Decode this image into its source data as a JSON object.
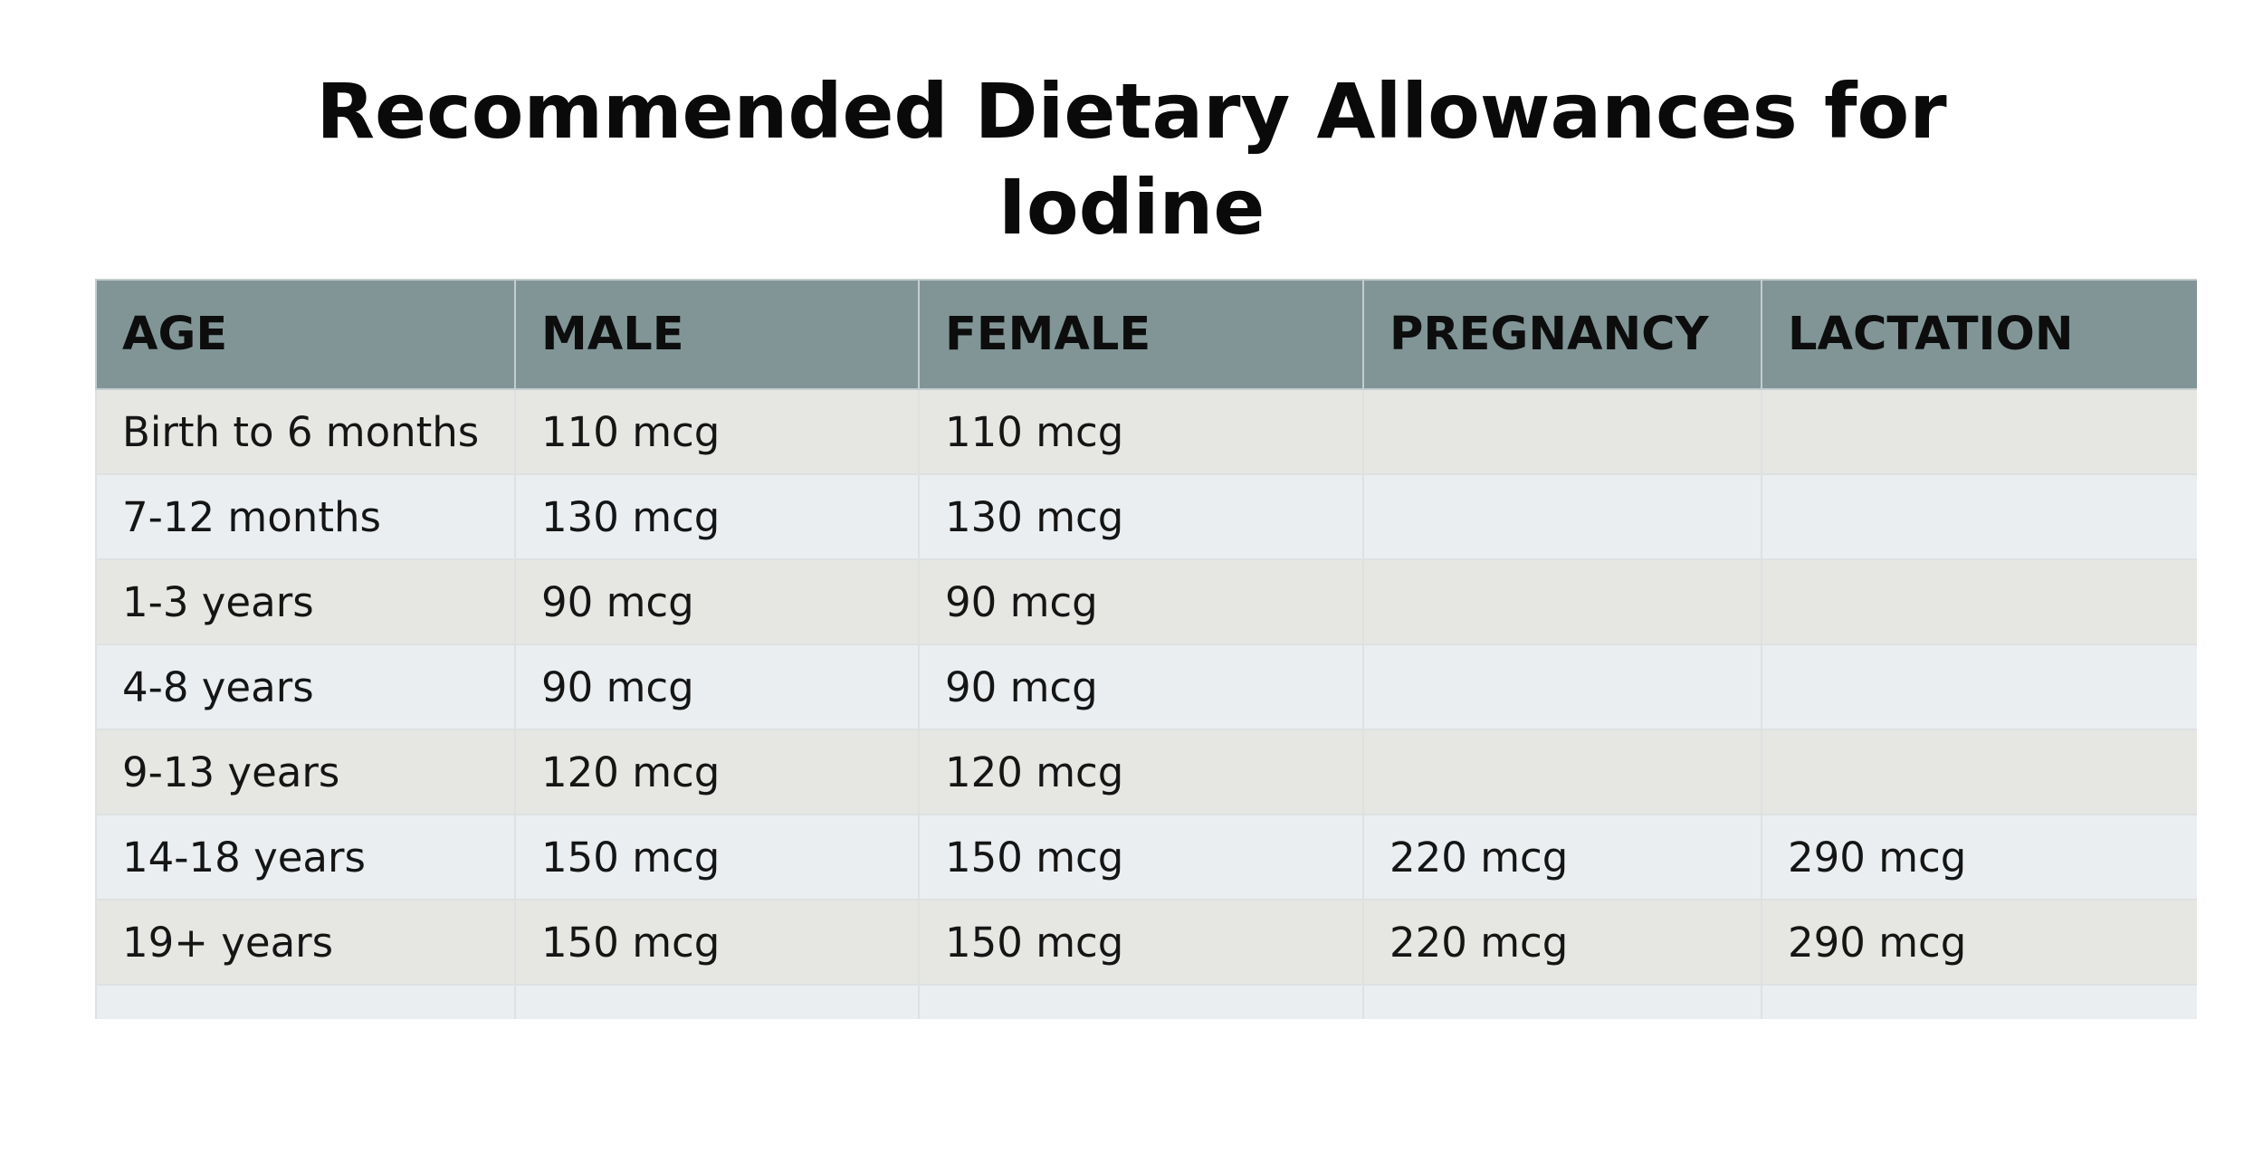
{
  "title": {
    "line1": "Recommended Dietary Allowances for",
    "line2": "Iodine"
  },
  "table": {
    "headers": [
      "AGE",
      "MALE",
      "FEMALE",
      "PREGNANCY",
      "LACTATION"
    ],
    "rows": [
      [
        "Birth to 6 months",
        "110 mcg",
        "110 mcg",
        "",
        ""
      ],
      [
        "7-12 months",
        "130 mcg",
        "130 mcg",
        "",
        ""
      ],
      [
        "1-3 years",
        "90 mcg",
        "90 mcg",
        "",
        ""
      ],
      [
        "4-8 years",
        "90 mcg",
        "90 mcg",
        "",
        ""
      ],
      [
        "9-13 years",
        "120 mcg",
        "120 mcg",
        "",
        ""
      ],
      [
        "14-18 years",
        "150 mcg",
        "150 mcg",
        "220 mcg",
        "290 mcg"
      ],
      [
        "19+ years",
        "150 mcg",
        "150 mcg",
        "220 mcg",
        "290 mcg"
      ],
      [
        "",
        "",
        "",
        "",
        ""
      ]
    ]
  },
  "colors": {
    "header_bg": "#819597",
    "row_odd_bg": "#e6e7e3",
    "row_even_bg": "#eaeef0",
    "border": "#dde1e2"
  }
}
